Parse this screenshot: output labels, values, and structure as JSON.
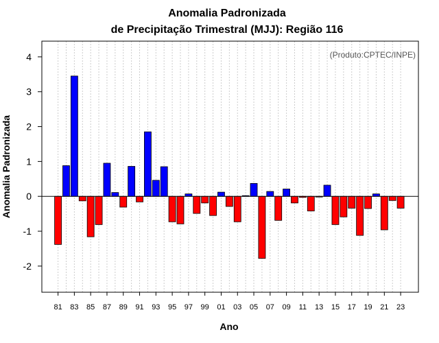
{
  "chart_data": {
    "type": "bar",
    "title_line1": "Anomalia Padronizada",
    "title_line2": "de Precipitação Trimestral (MJJ): Região 116",
    "xlabel": "Ano",
    "ylabel": "Anomalia Padronizada",
    "annotation": "(Produto:CPTEC/INPE)",
    "ylim": [
      -2.75,
      4.45
    ],
    "yticks": [
      4,
      3,
      2,
      1,
      0,
      -1,
      -2
    ],
    "ytick_labels": [
      "4",
      "3",
      "2",
      "1",
      "0",
      "-1",
      "-2"
    ],
    "categories": [
      "1981",
      "1982",
      "1983",
      "1984",
      "1985",
      "1986",
      "1987",
      "1988",
      "1989",
      "1990",
      "1991",
      "1992",
      "1993",
      "1994",
      "1995",
      "1996",
      "1997",
      "1998",
      "1999",
      "2000",
      "2001",
      "2002",
      "2003",
      "2004",
      "2005",
      "2006",
      "2007",
      "2008",
      "2009",
      "2010",
      "2011",
      "2012",
      "2013",
      "2014",
      "2015",
      "2016",
      "2017",
      "2018",
      "2019",
      "2020",
      "2021",
      "2022",
      "2023"
    ],
    "values": [
      -1.38,
      0.88,
      3.45,
      -0.13,
      -1.16,
      -0.81,
      0.95,
      0.11,
      -0.31,
      0.86,
      -0.16,
      1.85,
      0.46,
      0.85,
      -0.73,
      -0.79,
      0.07,
      -0.49,
      -0.19,
      -0.55,
      0.12,
      -0.29,
      -0.73,
      0.02,
      0.37,
      -1.78,
      0.14,
      -0.69,
      0.21,
      -0.19,
      -0.03,
      -0.42,
      -0.02,
      0.32,
      -0.81,
      -0.59,
      -0.34,
      -1.12,
      -0.35,
      0.07,
      -0.96,
      -0.12,
      -0.34
    ],
    "xtick_labels": [
      "81",
      "83",
      "85",
      "87",
      "89",
      "91",
      "93",
      "95",
      "97",
      "99",
      "01",
      "03",
      "05",
      "07",
      "09",
      "11",
      "13",
      "15",
      "17",
      "19",
      "21",
      "23"
    ],
    "positive_color": "#0000ff",
    "negative_color": "#ff0000",
    "grid": true
  }
}
